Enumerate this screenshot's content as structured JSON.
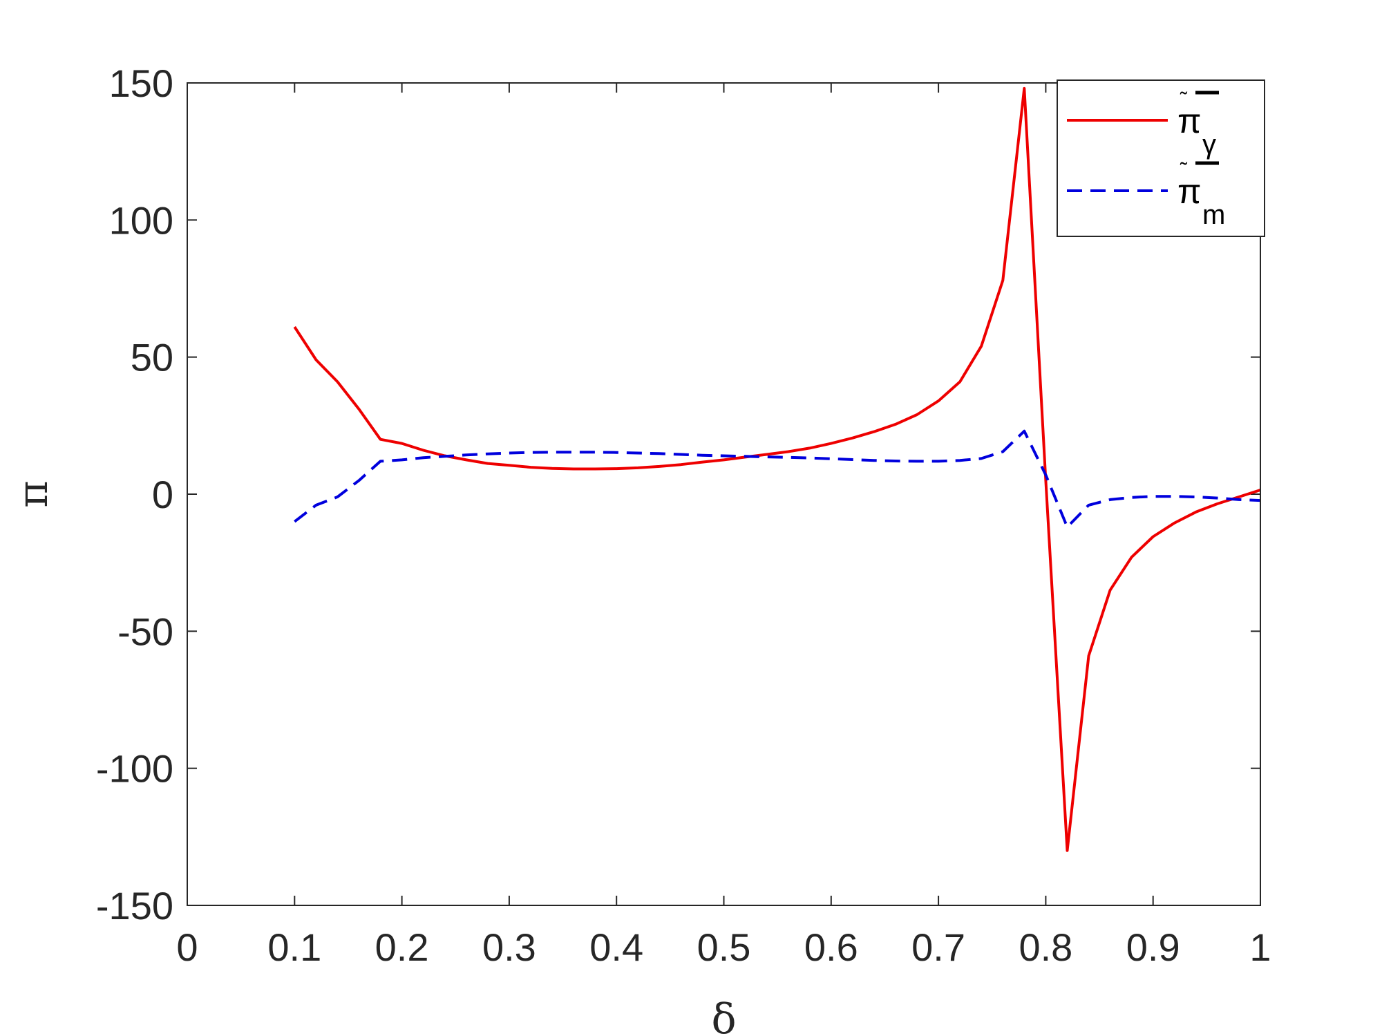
{
  "chart_data": {
    "type": "line",
    "xlabel": "δ",
    "ylabel": "π",
    "xlim": [
      0,
      1
    ],
    "ylim": [
      -150,
      150
    ],
    "xticks": [
      "0",
      "0.1",
      "0.2",
      "0.3",
      "0.4",
      "0.5",
      "0.6",
      "0.7",
      "0.8",
      "0.9",
      "1"
    ],
    "yticks": [
      "150",
      "100",
      "50",
      "0",
      "-50",
      "-100",
      "-150"
    ],
    "grid": false,
    "legend_position": "top-right",
    "series": [
      {
        "name": "π",
        "subscript": "γ",
        "color": "#ee0000",
        "style": "solid",
        "x": [
          0.1,
          0.12,
          0.14,
          0.16,
          0.18,
          0.2,
          0.22,
          0.24,
          0.26,
          0.28,
          0.3,
          0.32,
          0.34,
          0.36,
          0.38,
          0.4,
          0.42,
          0.44,
          0.46,
          0.48,
          0.5,
          0.52,
          0.54,
          0.56,
          0.58,
          0.6,
          0.62,
          0.64,
          0.66,
          0.68,
          0.7,
          0.72,
          0.74,
          0.76,
          0.78,
          0.8,
          0.82,
          0.84,
          0.86,
          0.88,
          0.9,
          0.92,
          0.94,
          0.96,
          0.98,
          1.0
        ],
        "values": [
          61,
          49,
          41,
          31,
          20,
          18.5,
          16,
          14,
          12.5,
          11.2,
          10.5,
          9.8,
          9.4,
          9.2,
          9.2,
          9.3,
          9.6,
          10.1,
          10.8,
          11.7,
          12.5,
          13.5,
          14.5,
          15.5,
          16.8,
          18.5,
          20.5,
          22.8,
          25.5,
          29,
          34,
          41,
          54,
          78,
          148,
          5,
          -130,
          -59,
          -35,
          -23,
          -15.5,
          -10.5,
          -6.5,
          -3.5,
          -1,
          1.5
        ]
      },
      {
        "name": "π",
        "subscript": "m",
        "color": "#0000dd",
        "style": "dashed",
        "x": [
          0.1,
          0.12,
          0.14,
          0.16,
          0.18,
          0.2,
          0.22,
          0.24,
          0.26,
          0.28,
          0.3,
          0.32,
          0.34,
          0.36,
          0.38,
          0.4,
          0.42,
          0.44,
          0.46,
          0.48,
          0.5,
          0.52,
          0.54,
          0.56,
          0.58,
          0.6,
          0.62,
          0.64,
          0.66,
          0.68,
          0.7,
          0.72,
          0.74,
          0.76,
          0.78,
          0.8,
          0.82,
          0.84,
          0.86,
          0.88,
          0.9,
          0.92,
          0.94,
          0.96,
          0.98,
          1.0
        ],
        "values": [
          -10,
          -4,
          -1,
          5,
          12,
          12.5,
          13.3,
          13.8,
          14.3,
          14.7,
          15,
          15.2,
          15.3,
          15.3,
          15.3,
          15.2,
          15,
          14.8,
          14.5,
          14.2,
          14,
          13.8,
          13.6,
          13.4,
          13.2,
          12.9,
          12.6,
          12.3,
          12.1,
          12,
          12,
          12.3,
          13,
          15.5,
          23,
          7,
          -12,
          -4,
          -2,
          -1.2,
          -0.8,
          -0.8,
          -1,
          -1.4,
          -2,
          -2.3
        ]
      }
    ]
  }
}
